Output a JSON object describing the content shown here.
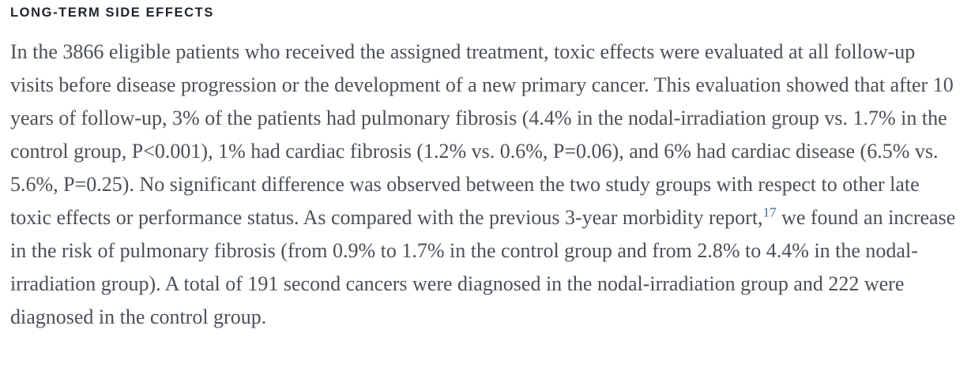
{
  "colors": {
    "background": "#ffffff",
    "heading_text": "#1e242a",
    "body_text": "#4a5056",
    "citation_link": "#35689b"
  },
  "section": {
    "heading": "LONG-TERM SIDE EFFECTS",
    "paragraph": {
      "before_ref": "In the 3866 eligible patients who received the assigned treatment, toxic effects were evaluated at all follow-up visits before disease progression or the development of a new primary cancer. This evaluation showed that after 10 years of follow-up, 3% of the patients had pulmonary fibrosis (4.4% in the nodal-irradiation group vs. 1.7% in the control group, P<0.001), 1% had cardiac fibrosis (1.2% vs. 0.6%, P=0.06), and 6% had cardiac disease (6.5% vs. 5.6%, P=0.25). No significant difference was observed between the two study groups with respect to other late toxic effects or performance status. As compared with the previous 3-year morbidity report,",
      "reference_number": "17",
      "after_ref": " we found an increase in the risk of pulmonary fibrosis (from 0.9% to 1.7% in the control group and from 2.8% to 4.4% in the nodal-irradiation group). A total of 191 second cancers were diagnosed in the nodal-irradiation group and 222 were diagnosed in the control group."
    }
  }
}
